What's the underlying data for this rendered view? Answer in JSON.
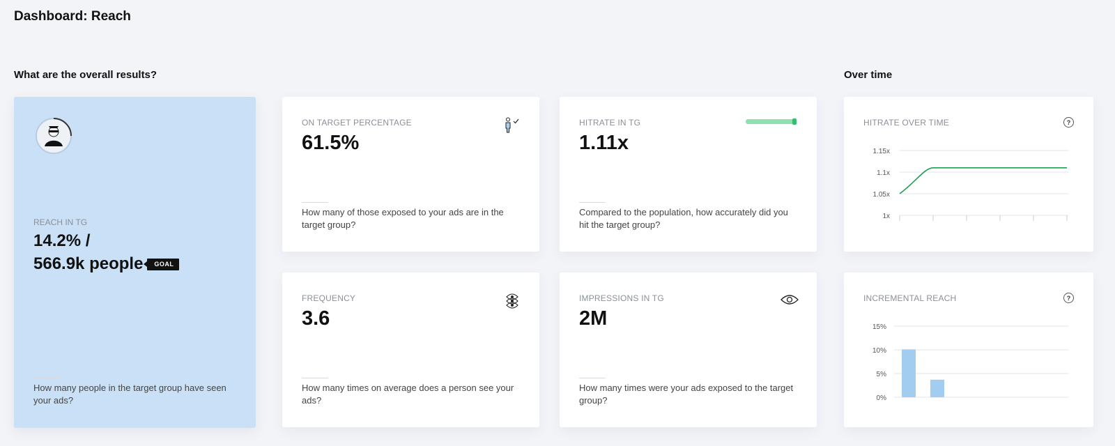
{
  "page": {
    "title": "Dashboard: Reach"
  },
  "sections": {
    "overall": "What are the overall results?",
    "over_time": "Over time"
  },
  "reach_card": {
    "label": "REACH IN TG",
    "value_line1": "14.2% /",
    "value_line2": "566.9k people",
    "badge": "GOAL",
    "description": "How many people in the target group have seen your ads?"
  },
  "on_target_card": {
    "label": "ON TARGET PERCENTAGE",
    "value": "61.5%",
    "icon": "person-check-icon",
    "description": "How many of those exposed to your ads are in the target group?"
  },
  "hitrate_card": {
    "label": "HITRATE IN TG",
    "value": "1.11x",
    "indicator_fill": 1.0,
    "indicator_color": "#8ee0b0",
    "description": "Compared to the population, how accurately did you hit the target group?"
  },
  "frequency_card": {
    "label": "FREQUENCY",
    "value": "3.6",
    "icon": "stacked-eyes-icon",
    "description": "How many times on average does a person see your ads?"
  },
  "impressions_card": {
    "label": "IMPRESSIONS IN TG",
    "value": "2M",
    "icon": "eye-icon",
    "description": "How many times were your ads exposed to the target group?"
  },
  "hitrate_over_time": {
    "label": "HITRATE OVER TIME",
    "help": "?"
  },
  "incremental_reach": {
    "label": "INCREMENTAL REACH",
    "help": "?"
  },
  "chart_data": [
    {
      "type": "line",
      "title": "HITRATE OVER TIME",
      "ytick_labels": [
        "1x",
        "1.05x",
        "1.1x",
        "1.15x"
      ],
      "yticks": [
        1.0,
        1.05,
        1.1,
        1.15
      ],
      "ylim": [
        1.0,
        1.15
      ],
      "x": [
        0,
        1,
        2,
        3,
        4,
        5
      ],
      "series": [
        {
          "values": [
            1.05,
            1.11,
            1.11,
            1.11,
            1.11,
            1.11
          ],
          "color": "#1e9e52"
        }
      ],
      "grid": true
    },
    {
      "type": "bar",
      "title": "INCREMENTAL REACH",
      "ytick_labels": [
        "0%",
        "5%",
        "10%",
        "15%"
      ],
      "yticks": [
        0,
        5,
        10,
        15
      ],
      "ylim": [
        0,
        15
      ],
      "values": [
        10.1,
        3.7
      ],
      "color": "#a3cdf0",
      "grid": true
    }
  ]
}
